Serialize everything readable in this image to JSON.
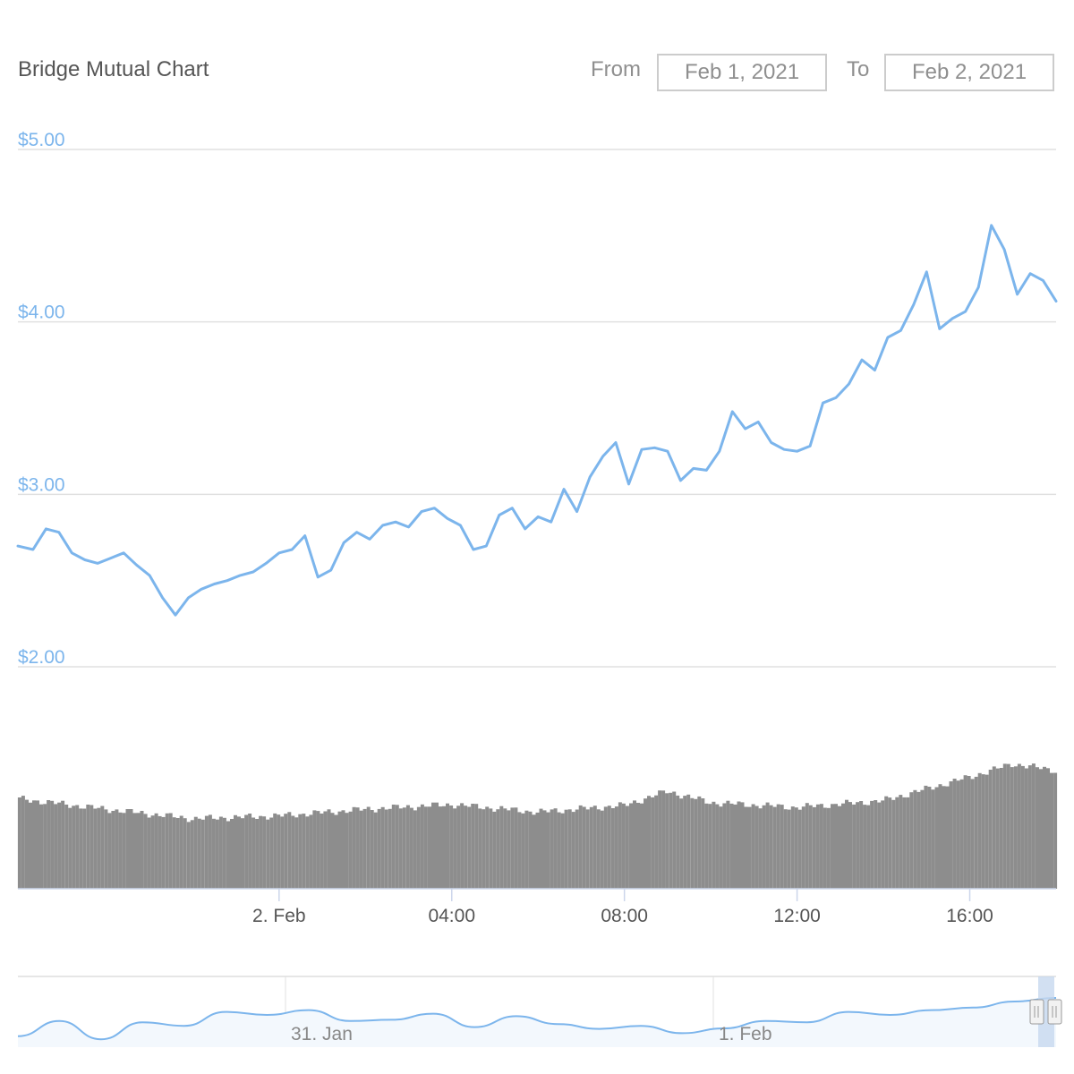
{
  "header": {
    "title": "Bridge Mutual Chart",
    "from_label": "From",
    "from_value": "Feb 1, 2021",
    "to_label": "To",
    "to_value": "Feb 2, 2021"
  },
  "colors": {
    "price_line": "#7cb5ec",
    "volume_bar": "#8d8d8d",
    "grid": "#e0e0e0",
    "axis_text": "#555555",
    "navigator_mask": "#c7d8ef"
  },
  "chart_data": {
    "type": "line",
    "title": "Bridge Mutual Chart",
    "y_axis": {
      "tick_labels": [
        "$2.00",
        "$3.00",
        "$4.00",
        "$5.00"
      ],
      "ylim": [
        2,
        5
      ]
    },
    "x_axis": {
      "tick_labels": [
        "2. Feb",
        "04:00",
        "08:00",
        "12:00",
        "16:00"
      ],
      "tick_hours": [
        0,
        4,
        8,
        12,
        16
      ],
      "xlim_hours": [
        -6.05,
        18.0
      ]
    },
    "grid": true,
    "series": [
      {
        "kind": "price",
        "x_hours": [
          -6.05,
          -5.7,
          -5.4,
          -5.1,
          -4.8,
          -4.5,
          -4.2,
          -3.9,
          -3.6,
          -3.3,
          -3.0,
          -2.7,
          -2.4,
          -2.1,
          -1.8,
          -1.5,
          -1.2,
          -0.9,
          -0.6,
          -0.3,
          0.0,
          0.3,
          0.6,
          0.9,
          1.2,
          1.5,
          1.8,
          2.1,
          2.4,
          2.7,
          3.0,
          3.3,
          3.6,
          3.9,
          4.2,
          4.5,
          4.8,
          5.1,
          5.4,
          5.7,
          6.0,
          6.3,
          6.6,
          6.9,
          7.2,
          7.5,
          7.8,
          8.1,
          8.4,
          8.7,
          9.0,
          9.3,
          9.6,
          9.9,
          10.2,
          10.5,
          10.8,
          11.1,
          11.4,
          11.7,
          12.0,
          12.3,
          12.6,
          12.9,
          13.2,
          13.5,
          13.8,
          14.1,
          14.4,
          14.7,
          15.0,
          15.3,
          15.6,
          15.9,
          16.2,
          16.5,
          16.8,
          17.1,
          17.4,
          17.7,
          18.0
        ],
        "values": [
          2.7,
          2.68,
          2.8,
          2.78,
          2.66,
          2.62,
          2.6,
          2.63,
          2.66,
          2.59,
          2.53,
          2.4,
          2.3,
          2.4,
          2.45,
          2.48,
          2.5,
          2.53,
          2.55,
          2.6,
          2.66,
          2.68,
          2.76,
          2.52,
          2.56,
          2.72,
          2.78,
          2.74,
          2.82,
          2.84,
          2.81,
          2.9,
          2.92,
          2.86,
          2.82,
          2.68,
          2.7,
          2.88,
          2.92,
          2.8,
          2.87,
          2.84,
          3.03,
          2.9,
          3.1,
          3.22,
          3.3,
          3.06,
          3.26,
          3.27,
          3.25,
          3.08,
          3.15,
          3.14,
          3.25,
          3.48,
          3.38,
          3.42,
          3.3,
          3.26,
          3.25,
          3.28,
          3.53,
          3.56,
          3.64,
          3.78,
          3.72,
          3.91,
          3.95,
          4.1,
          4.29,
          3.96,
          4.02,
          4.06,
          4.2,
          4.56,
          4.42,
          4.16,
          4.28,
          4.24,
          4.12
        ]
      },
      {
        "kind": "volume",
        "x_hours": [
          -6.0,
          -4.0,
          -2.0,
          0.0,
          2.0,
          4.0,
          6.0,
          8.0,
          9.0,
          10.0,
          12.0,
          14.0,
          16.0,
          17.0,
          18.0
        ],
        "values": [
          0.95,
          0.84,
          0.74,
          0.77,
          0.84,
          0.89,
          0.81,
          0.88,
          1.03,
          0.91,
          0.86,
          0.93,
          1.18,
          1.32,
          1.25
        ]
      }
    ],
    "navigator": {
      "tick_labels": [
        "31. Jan",
        "1. Feb"
      ],
      "values": [
        2.15,
        2.4,
        2.1,
        2.38,
        2.32,
        2.55,
        2.5,
        2.58,
        2.4,
        2.42,
        2.52,
        2.3,
        2.48,
        2.35,
        2.27,
        2.32,
        2.2,
        2.28,
        2.4,
        2.38,
        2.55,
        2.5,
        2.58,
        2.62,
        2.72,
        2.78
      ]
    }
  }
}
